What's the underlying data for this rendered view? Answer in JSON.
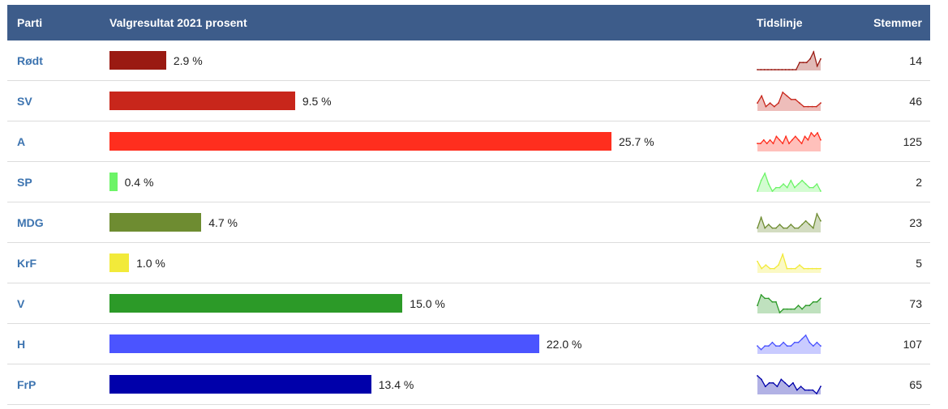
{
  "header": {
    "party": "Parti",
    "result": "Valgresultat 2021 prosent",
    "timeline": "Tidslinje",
    "votes": "Stemmer"
  },
  "chart_data": {
    "type": "bar",
    "unit": "%",
    "xlim": [
      0,
      25.7
    ],
    "rows": [
      {
        "party": "Rødt",
        "value": 2.9,
        "label": "2.9 %",
        "votes": 14,
        "color": "#9a1a12",
        "spark": [
          0,
          0,
          0,
          0,
          0,
          0,
          0,
          0,
          0,
          0,
          0,
          0,
          2,
          2,
          2,
          3,
          5,
          1,
          3
        ]
      },
      {
        "party": "SV",
        "value": 9.5,
        "label": "9.5 %",
        "votes": 46,
        "color": "#c8261b",
        "spark": [
          2,
          4,
          1,
          2,
          1,
          2,
          5,
          4,
          3,
          3,
          2,
          1,
          1,
          1,
          1,
          2
        ]
      },
      {
        "party": "A",
        "value": 25.7,
        "label": "25.7 %",
        "votes": 125,
        "color": "#ff2e1e",
        "spark": [
          2,
          2,
          3,
          2,
          3,
          2,
          4,
          3,
          2,
          4,
          2,
          3,
          4,
          3,
          2,
          4,
          3,
          5,
          4,
          5,
          3
        ]
      },
      {
        "party": "SP",
        "value": 0.4,
        "label": "0.4 %",
        "votes": 2,
        "color": "#6cf467",
        "spark": [
          0,
          3,
          5,
          2,
          0,
          1,
          1,
          2,
          1,
          3,
          1,
          2,
          3,
          2,
          1,
          1,
          2,
          0
        ]
      },
      {
        "party": "MDG",
        "value": 4.7,
        "label": "4.7 %",
        "votes": 23,
        "color": "#6e8c31",
        "spark": [
          1,
          4,
          1,
          2,
          1,
          1,
          2,
          1,
          1,
          2,
          1,
          1,
          2,
          3,
          2,
          1,
          5,
          3
        ]
      },
      {
        "party": "KrF",
        "value": 1.0,
        "label": "1.0 %",
        "votes": 5,
        "color": "#f2ea3a",
        "spark": [
          3,
          1,
          2,
          1,
          1,
          2,
          5,
          1,
          1,
          1,
          2,
          1,
          1,
          1,
          1,
          1
        ]
      },
      {
        "party": "V",
        "value": 15.0,
        "label": "15.0 %",
        "votes": 73,
        "color": "#2c9a28",
        "spark": [
          2,
          5,
          4,
          4,
          3,
          3,
          0,
          1,
          1,
          1,
          1,
          2,
          1,
          2,
          2,
          3,
          3,
          4
        ]
      },
      {
        "party": "H",
        "value": 22.0,
        "label": "22.0 %",
        "votes": 107,
        "color": "#4b54ff",
        "spark": [
          2,
          1,
          2,
          2,
          3,
          2,
          2,
          3,
          2,
          2,
          3,
          3,
          4,
          5,
          3,
          2,
          3,
          2
        ]
      },
      {
        "party": "FrP",
        "value": 13.4,
        "label": "13.4 %",
        "votes": 65,
        "color": "#0000aa",
        "spark": [
          5,
          4,
          2,
          3,
          3,
          2,
          4,
          3,
          2,
          3,
          1,
          2,
          1,
          1,
          1,
          0,
          2
        ]
      }
    ]
  }
}
